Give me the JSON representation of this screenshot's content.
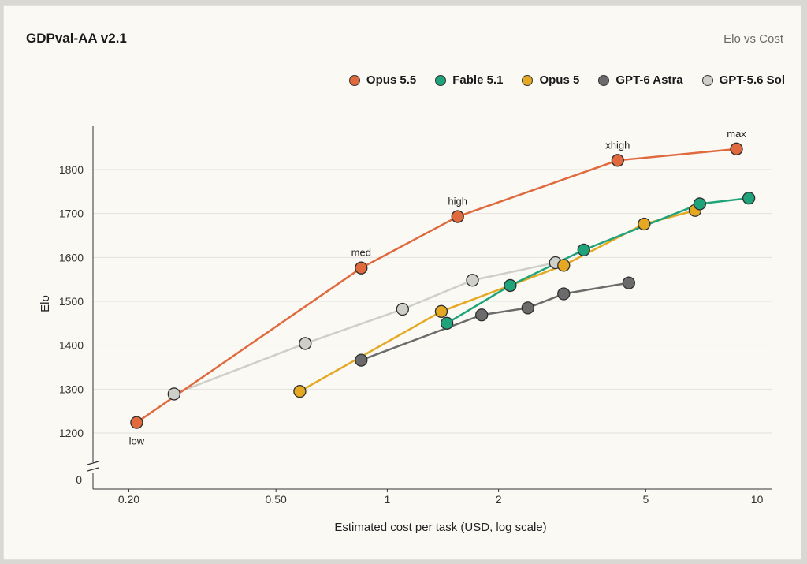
{
  "chart_data": {
    "type": "line",
    "title": "GDPval-AA v2.1",
    "subtitle": "Elo vs Cost",
    "xlabel": "Estimated cost per task (USD, log scale)",
    "ylabel": "Elo",
    "x_scale": "log",
    "xlim": [
      0.16,
      11
    ],
    "ylim": [
      1160,
      1860
    ],
    "x_ticks": [
      0.2,
      0.5,
      1,
      2,
      5,
      10
    ],
    "x_tick_labels": [
      "0.20",
      "0.50",
      "1",
      "2",
      "5",
      "10"
    ],
    "y_ticks": [
      1200,
      1300,
      1400,
      1500,
      1600,
      1700,
      1800
    ],
    "y_tick_labels": [
      "1200",
      "1300",
      "1400",
      "1500",
      "1600",
      "1700",
      "1800"
    ],
    "y_break_label": "0",
    "grid": "horizontal",
    "legend_position": "top-right",
    "series": [
      {
        "name": "Opus 5.5",
        "color": "#e0693d",
        "x": [
          0.21,
          0.85,
          1.55,
          4.2,
          8.8
        ],
        "y": [
          1224,
          1576,
          1693,
          1821,
          1847
        ]
      },
      {
        "name": "Fable 5.1",
        "color": "#1fa37a",
        "x": [
          1.45,
          2.15,
          3.4,
          7.0,
          9.5
        ],
        "y": [
          1450,
          1536,
          1617,
          1722,
          1735
        ]
      },
      {
        "name": "Opus 5",
        "color": "#e5a823",
        "x": [
          0.58,
          1.4,
          3.0,
          4.95,
          6.8
        ],
        "y": [
          1295,
          1477,
          1582,
          1676,
          1707
        ]
      },
      {
        "name": "GPT-6 Astra",
        "color": "#6b6b6b",
        "x": [
          0.85,
          1.8,
          2.4,
          3.0,
          4.5
        ],
        "y": [
          1366,
          1469,
          1485,
          1517,
          1542
        ]
      },
      {
        "name": "GPT-5.6 Sol",
        "color": "#cfcfca",
        "x": [
          0.265,
          0.6,
          1.1,
          1.7,
          2.85
        ],
        "y": [
          1289,
          1404,
          1482,
          1548,
          1588
        ]
      }
    ],
    "annotations": [
      {
        "text": "low",
        "series": 0,
        "point": 0,
        "position": "below"
      },
      {
        "text": "med",
        "series": 0,
        "point": 1,
        "position": "above"
      },
      {
        "text": "high",
        "series": 0,
        "point": 2,
        "position": "above"
      },
      {
        "text": "xhigh",
        "series": 0,
        "point": 3,
        "position": "above"
      },
      {
        "text": "max",
        "series": 0,
        "point": 4,
        "position": "above"
      }
    ]
  }
}
